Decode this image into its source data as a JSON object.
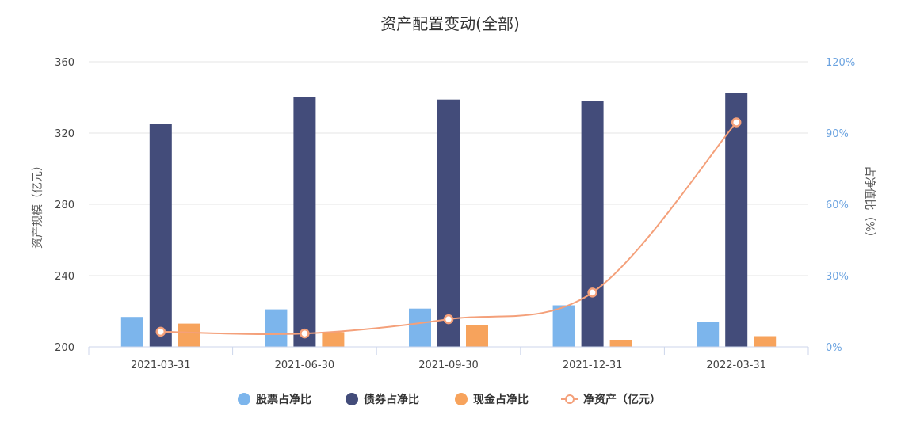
{
  "chart_data": {
    "type": "bar",
    "title": "资产配置变动(全部)",
    "categories": [
      "2021-03-31",
      "2021-06-30",
      "2021-09-30",
      "2021-12-31",
      "2022-03-31"
    ],
    "ylabel_left": "资产规模（亿元）",
    "ylabel_right": "占净值比（%）",
    "ylim_left": [
      200,
      360
    ],
    "ylim_right": [
      0,
      120
    ],
    "yticks_left": [
      "200",
      "240",
      "280",
      "320",
      "360"
    ],
    "yticks_right": [
      "0%",
      "30%",
      "60%",
      "90%",
      "120%"
    ],
    "series": [
      {
        "name": "股票占净比",
        "type": "bar",
        "axis": "right",
        "color": "#7cb5ec",
        "values": [
          12.6,
          15.8,
          16.1,
          17.5,
          10.6
        ]
      },
      {
        "name": "债券占净比",
        "type": "bar",
        "axis": "right",
        "color": "#434c7a",
        "values": [
          93.8,
          105.2,
          104.1,
          103.4,
          106.8
        ]
      },
      {
        "name": "现金占净比",
        "type": "bar",
        "axis": "right",
        "color": "#f7a35c",
        "values": [
          9.8,
          6.2,
          9.0,
          3.0,
          4.5
        ]
      },
      {
        "name": "净资产（亿元）",
        "type": "line",
        "axis": "left",
        "color": "#f4a07a",
        "values": [
          208.5,
          207.5,
          215.5,
          230.5,
          326.0
        ]
      }
    ],
    "grid": true,
    "legend_position": "bottom"
  }
}
